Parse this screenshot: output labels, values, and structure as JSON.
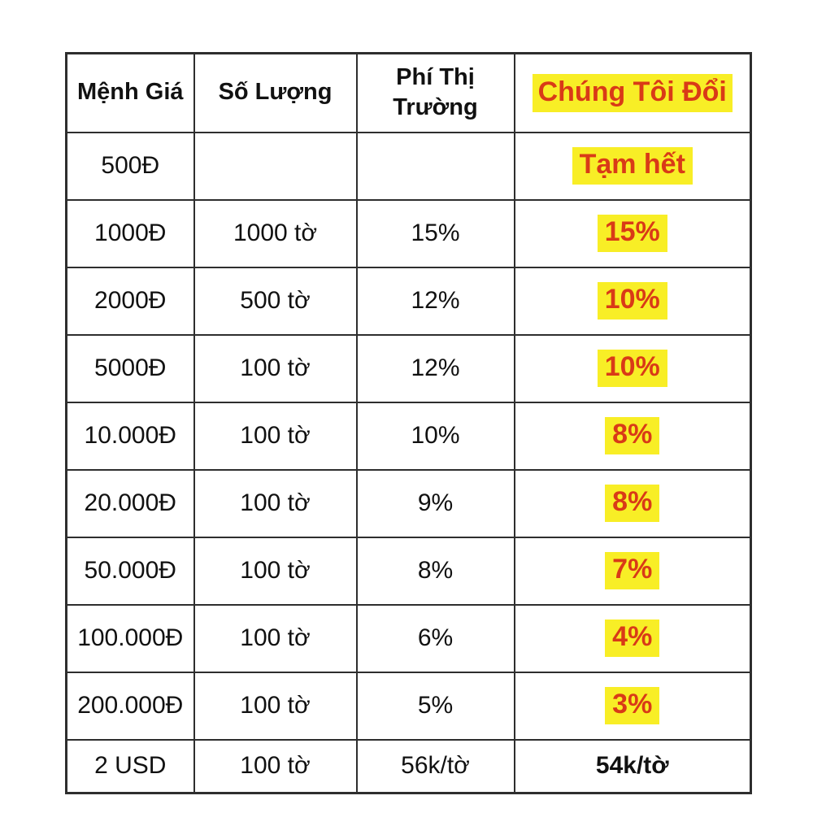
{
  "colors": {
    "red": "#d93a17",
    "yellow": "#f8ee26",
    "border": "#2e2e2e",
    "text": "#111111",
    "background": "#ffffff"
  },
  "table": {
    "headers": {
      "denomination": "Mệnh Giá",
      "quantity": "Số Lượng",
      "market_fee": "Phí Thị Trường",
      "we_exchange": "Chúng Tôi Đổi"
    },
    "rows": [
      {
        "denomination": "500Đ",
        "quantity": "",
        "market_fee": "",
        "we_exchange": "Tạm hết"
      },
      {
        "denomination": "1000Đ",
        "quantity": "1000 tờ",
        "market_fee": "15%",
        "we_exchange": "15%"
      },
      {
        "denomination": "2000Đ",
        "quantity": "500 tờ",
        "market_fee": "12%",
        "we_exchange": "10%"
      },
      {
        "denomination": "5000Đ",
        "quantity": "100 tờ",
        "market_fee": "12%",
        "we_exchange": "10%"
      },
      {
        "denomination": "10.000Đ",
        "quantity": "100 tờ",
        "market_fee": "10%",
        "we_exchange": "8%"
      },
      {
        "denomination": "20.000Đ",
        "quantity": "100 tờ",
        "market_fee": "9%",
        "we_exchange": "8%"
      },
      {
        "denomination": "50.000Đ",
        "quantity": "100 tờ",
        "market_fee": "8%",
        "we_exchange": "7%"
      },
      {
        "denomination": "100.000Đ",
        "quantity": "100 tờ",
        "market_fee": "6%",
        "we_exchange": "4%"
      },
      {
        "denomination": "200.000Đ",
        "quantity": "100 tờ",
        "market_fee": "5%",
        "we_exchange": "3%"
      },
      {
        "denomination": "2 USD",
        "quantity": "100 tờ",
        "market_fee": "56k/tờ",
        "we_exchange": "54k/tờ"
      }
    ]
  }
}
